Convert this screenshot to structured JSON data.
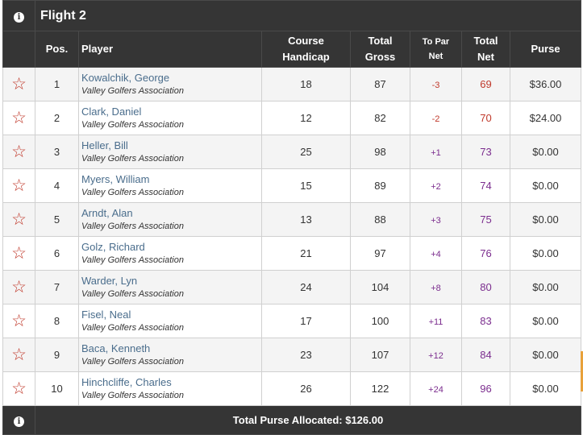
{
  "header": {
    "title": "Flight 2",
    "info_icon": "info-icon"
  },
  "columns": {
    "pos": "Pos.",
    "player": "Player",
    "course_handicap": [
      "Course",
      "Handicap"
    ],
    "total_gross": [
      "Total",
      "Gross"
    ],
    "to_par_net": [
      "To Par",
      "Net"
    ],
    "total_net": [
      "Total",
      "Net"
    ],
    "purse": "Purse"
  },
  "rows": [
    {
      "pos": "1",
      "name": "Kowalchik, George",
      "assoc": "Valley Golfers Association",
      "handicap": "18",
      "gross": "87",
      "to_par": "-3",
      "net": "69",
      "purse": "$36.00"
    },
    {
      "pos": "2",
      "name": "Clark, Daniel",
      "assoc": "Valley Golfers Association",
      "handicap": "12",
      "gross": "82",
      "to_par": "-2",
      "net": "70",
      "purse": "$24.00"
    },
    {
      "pos": "3",
      "name": "Heller, Bill",
      "assoc": "Valley Golfers Association",
      "handicap": "25",
      "gross": "98",
      "to_par": "+1",
      "net": "73",
      "purse": "$0.00"
    },
    {
      "pos": "4",
      "name": "Myers, William",
      "assoc": "Valley Golfers Association",
      "handicap": "15",
      "gross": "89",
      "to_par": "+2",
      "net": "74",
      "purse": "$0.00"
    },
    {
      "pos": "5",
      "name": "Arndt, Alan",
      "assoc": "Valley Golfers Association",
      "handicap": "13",
      "gross": "88",
      "to_par": "+3",
      "net": "75",
      "purse": "$0.00"
    },
    {
      "pos": "6",
      "name": "Golz, Richard",
      "assoc": "Valley Golfers Association",
      "handicap": "21",
      "gross": "97",
      "to_par": "+4",
      "net": "76",
      "purse": "$0.00"
    },
    {
      "pos": "7",
      "name": "Warder, Lyn",
      "assoc": "Valley Golfers Association",
      "handicap": "24",
      "gross": "104",
      "to_par": "+8",
      "net": "80",
      "purse": "$0.00"
    },
    {
      "pos": "8",
      "name": "Fisel, Neal",
      "assoc": "Valley Golfers Association",
      "handicap": "17",
      "gross": "100",
      "to_par": "+11",
      "net": "83",
      "purse": "$0.00"
    },
    {
      "pos": "9",
      "name": "Baca, Kenneth",
      "assoc": "Valley Golfers Association",
      "handicap": "23",
      "gross": "107",
      "to_par": "+12",
      "net": "84",
      "purse": "$0.00"
    },
    {
      "pos": "10",
      "name": "Hinchcliffe, Charles",
      "assoc": "Valley Golfers Association",
      "handicap": "26",
      "gross": "122",
      "to_par": "+24",
      "net": "96",
      "purse": "$0.00"
    }
  ],
  "footer": {
    "total_purse": "Total Purse Allocated: $126.00"
  },
  "colors": {
    "header_bg": "#353535",
    "red": "#c0392b",
    "purple": "#7b2d8e",
    "link": "#4a6d8c",
    "star": "#c0392b"
  }
}
